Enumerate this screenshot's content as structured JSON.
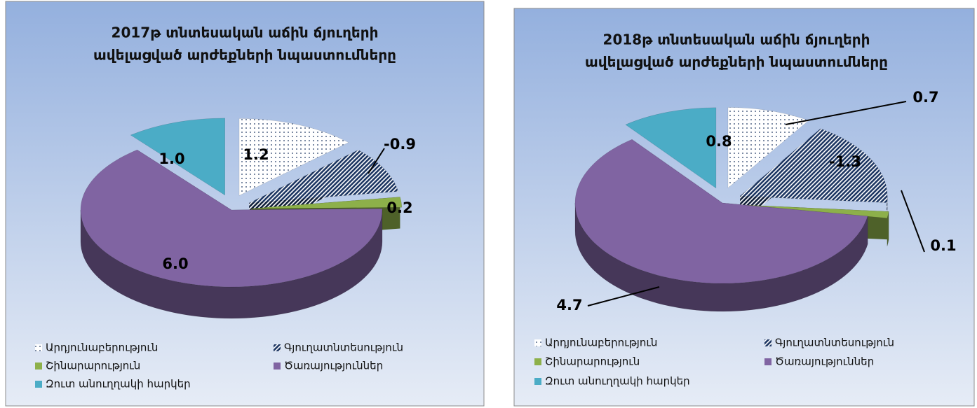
{
  "chart_data": [
    {
      "type": "pie",
      "title": [
        "2017թ տնտեսական աճին ճյուղերի",
        "ավելացված արժեքների նպաստումները"
      ],
      "categories": [
        "Արդյունաբերություն",
        "Գյուղատնտեսություն",
        "Շինարարություն",
        "Ծառայություններ",
        "Զուտ անուղղակի հարկեր"
      ],
      "values": [
        1.2,
        -0.9,
        0.2,
        6.0,
        1.0
      ],
      "value_labels": [
        "1.2",
        "-0.9",
        "0.2",
        "6.0",
        "1.0"
      ],
      "colors": [
        "#ffffff",
        "#1f3864",
        "#8db04a",
        "#8064a2",
        "#4bacc6"
      ],
      "patterns": [
        "dots",
        "hatch",
        null,
        null,
        null
      ]
    },
    {
      "type": "pie",
      "title": [
        "2018թ տնտեսական աճին ճյուղերի",
        "ավելացված արժեքների նպաստումները"
      ],
      "categories": [
        "Արդյունաբերություն",
        "Գյուղատնտեսություն",
        "Շինարարություն",
        "Ծառայություններ",
        "Զուտ անուղղակի հարկեր"
      ],
      "values": [
        0.7,
        -1.3,
        0.1,
        4.7,
        0.8
      ],
      "value_labels": [
        "0.7",
        "-1.3",
        "0.1",
        "4.7",
        "0.8"
      ],
      "colors": [
        "#ffffff",
        "#1f3864",
        "#8db04a",
        "#8064a2",
        "#4bacc6"
      ],
      "patterns": [
        "dots",
        "hatch",
        null,
        null,
        null
      ]
    }
  ]
}
